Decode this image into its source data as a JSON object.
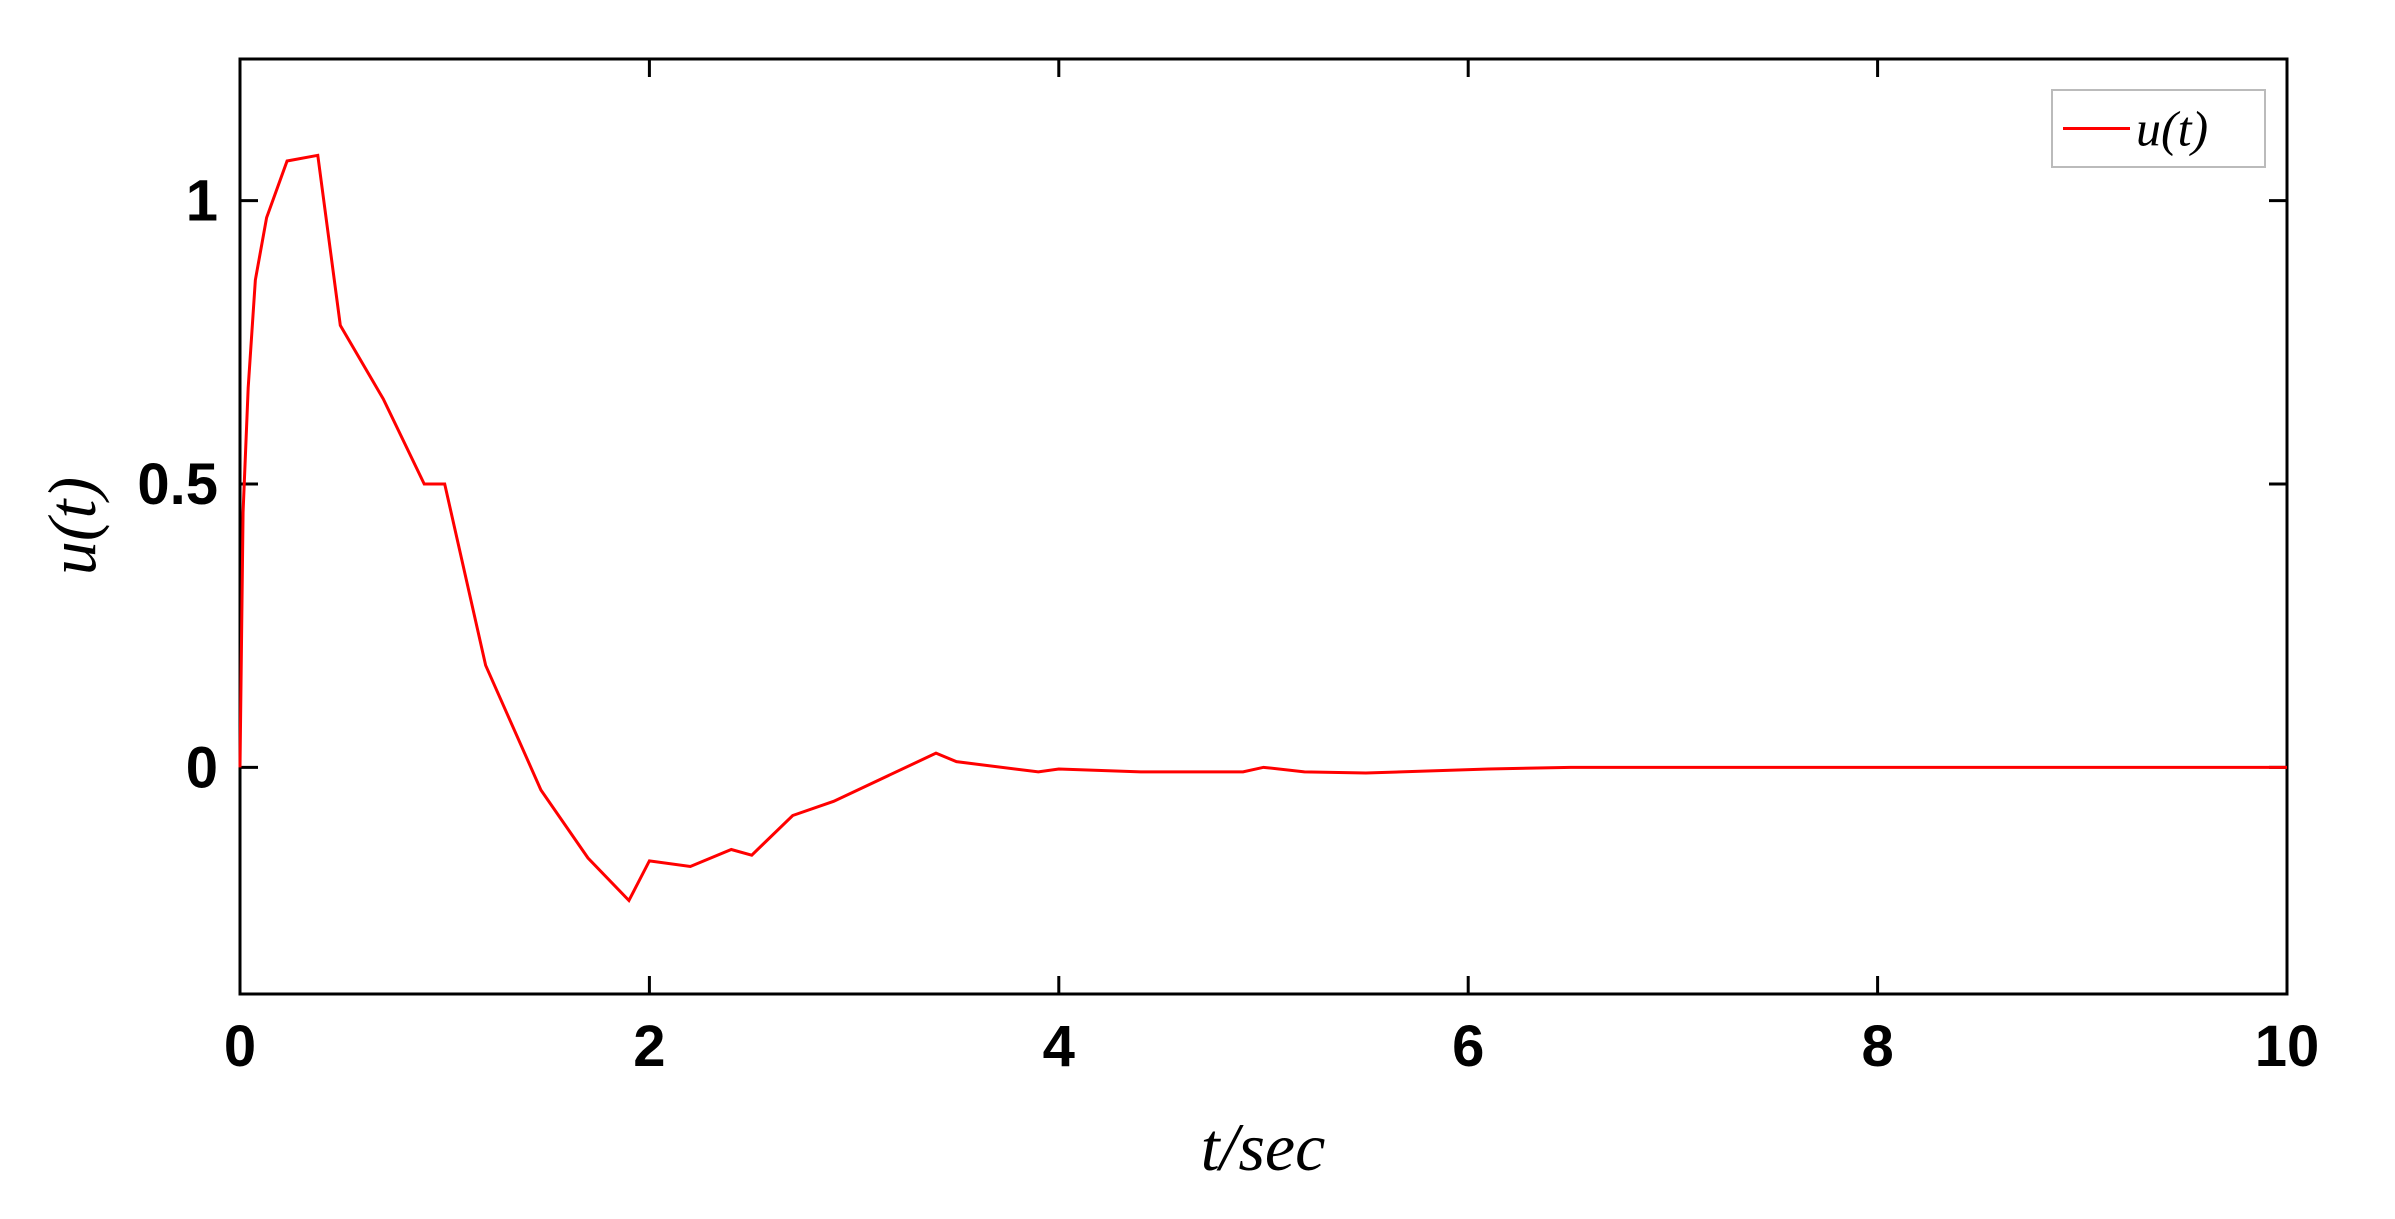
{
  "chart_data": {
    "type": "line",
    "xlabel": "t/sec",
    "ylabel": "u(t)",
    "x": [
      0,
      0.015,
      0.04,
      0.075,
      0.13,
      0.23,
      0.38,
      0.49,
      0.7,
      0.9,
      1.0,
      1.2,
      1.47,
      1.7,
      1.9,
      2.0,
      2.2,
      2.4,
      2.5,
      2.7,
      2.9,
      3.4,
      3.5,
      3.9,
      4.0,
      4.4,
      4.9,
      5.0,
      5.2,
      5.5,
      6.1,
      6.5,
      10
    ],
    "series": [
      {
        "name": "u(t)",
        "color": "#ff0000",
        "values": [
          0,
          0.45,
          0.67,
          0.86,
          0.97,
          1.07,
          1.08,
          0.78,
          0.65,
          0.5,
          0.5,
          0.18,
          -0.04,
          -0.16,
          -0.235,
          -0.165,
          -0.175,
          -0.145,
          -0.155,
          -0.085,
          -0.06,
          0.025,
          0.01,
          -0.008,
          -0.003,
          -0.008,
          -0.008,
          0,
          -0.008,
          -0.01,
          -0.003,
          0,
          0
        ]
      }
    ],
    "xlim": [
      0,
      10
    ],
    "xticks": [
      0,
      2,
      4,
      6,
      8,
      10
    ],
    "ylim": [
      -0.4,
      1.25
    ],
    "yticks": [
      0,
      0.5,
      1
    ],
    "grid": false,
    "legend": "upper right"
  }
}
